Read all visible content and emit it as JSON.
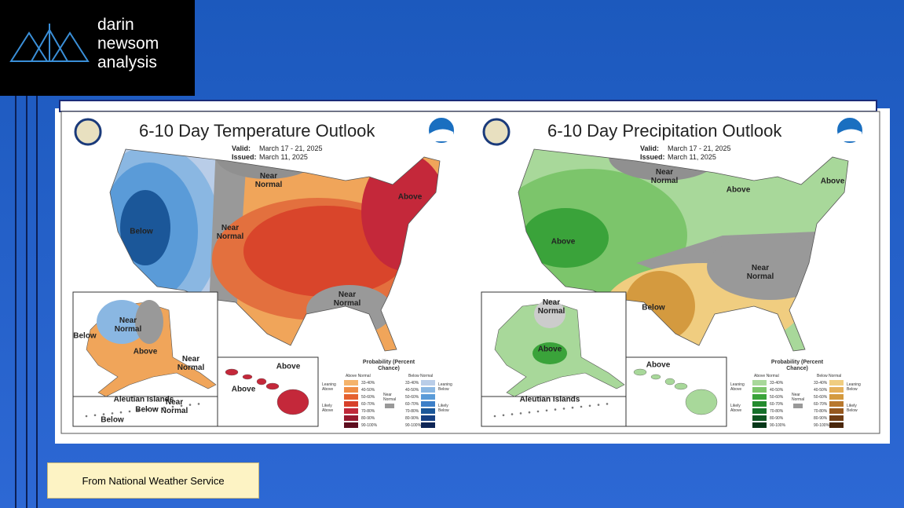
{
  "logo": {
    "lines": [
      "darin",
      "newsom",
      "analysis"
    ]
  },
  "maps": [
    {
      "title": "6-10 Day Temperature Outlook",
      "valid_label": "Valid:",
      "valid": "March 17 - 21, 2025",
      "issued_label": "Issued:",
      "issued": "March 11, 2025",
      "labels": [
        "Below",
        "Near Normal",
        "Near Normal",
        "Above",
        "Near Normal",
        "Below",
        "Near Normal",
        "Above",
        "Near Normal",
        "Aleutian Islands",
        "Near Normal",
        "Below",
        "Below",
        "Above",
        "Above"
      ],
      "legend": {
        "title": "Probability (Percent Chance)",
        "above_header": "Above Normal",
        "below_header": "Below Normal",
        "leaning_above": "Leaning Above",
        "likely_above": "Likely Above",
        "near_normal": "Near Normal",
        "leaning_below": "Leaning Below",
        "likely_below": "Likely Below",
        "above_ranges": [
          "33-40%",
          "40-50%",
          "50-60%",
          "60-70%",
          "70-80%",
          "80-90%",
          "90-100%"
        ],
        "below_ranges": [
          "33-40%",
          "40-50%",
          "50-60%",
          "60-70%",
          "70-80%",
          "80-90%",
          "90-100%"
        ]
      }
    },
    {
      "title": "6-10 Day Precipitation Outlook",
      "valid_label": "Valid:",
      "valid": "March 17 - 21, 2025",
      "issued_label": "Issued:",
      "issued": "March 11, 2025",
      "labels": [
        "Near Normal",
        "Above",
        "Above",
        "Above",
        "Below",
        "Near Normal",
        "Near Normal",
        "Above",
        "Aleutian Islands",
        "Above"
      ],
      "legend": {
        "title": "Probability (Percent Chance)",
        "above_header": "Above Normal",
        "below_header": "Below Normal",
        "leaning_above": "Leaning Above",
        "likely_above": "Likely Above",
        "near_normal": "Near Normal",
        "leaning_below": "Leaning Below",
        "likely_below": "Likely Below",
        "above_ranges": [
          "33-40%",
          "40-50%",
          "50-60%",
          "60-70%",
          "70-80%",
          "80-90%",
          "90-100%"
        ],
        "below_ranges": [
          "33-40%",
          "40-50%",
          "50-60%",
          "60-70%",
          "70-80%",
          "80-90%",
          "90-100%"
        ]
      }
    }
  ],
  "caption": "From National Weather Service"
}
